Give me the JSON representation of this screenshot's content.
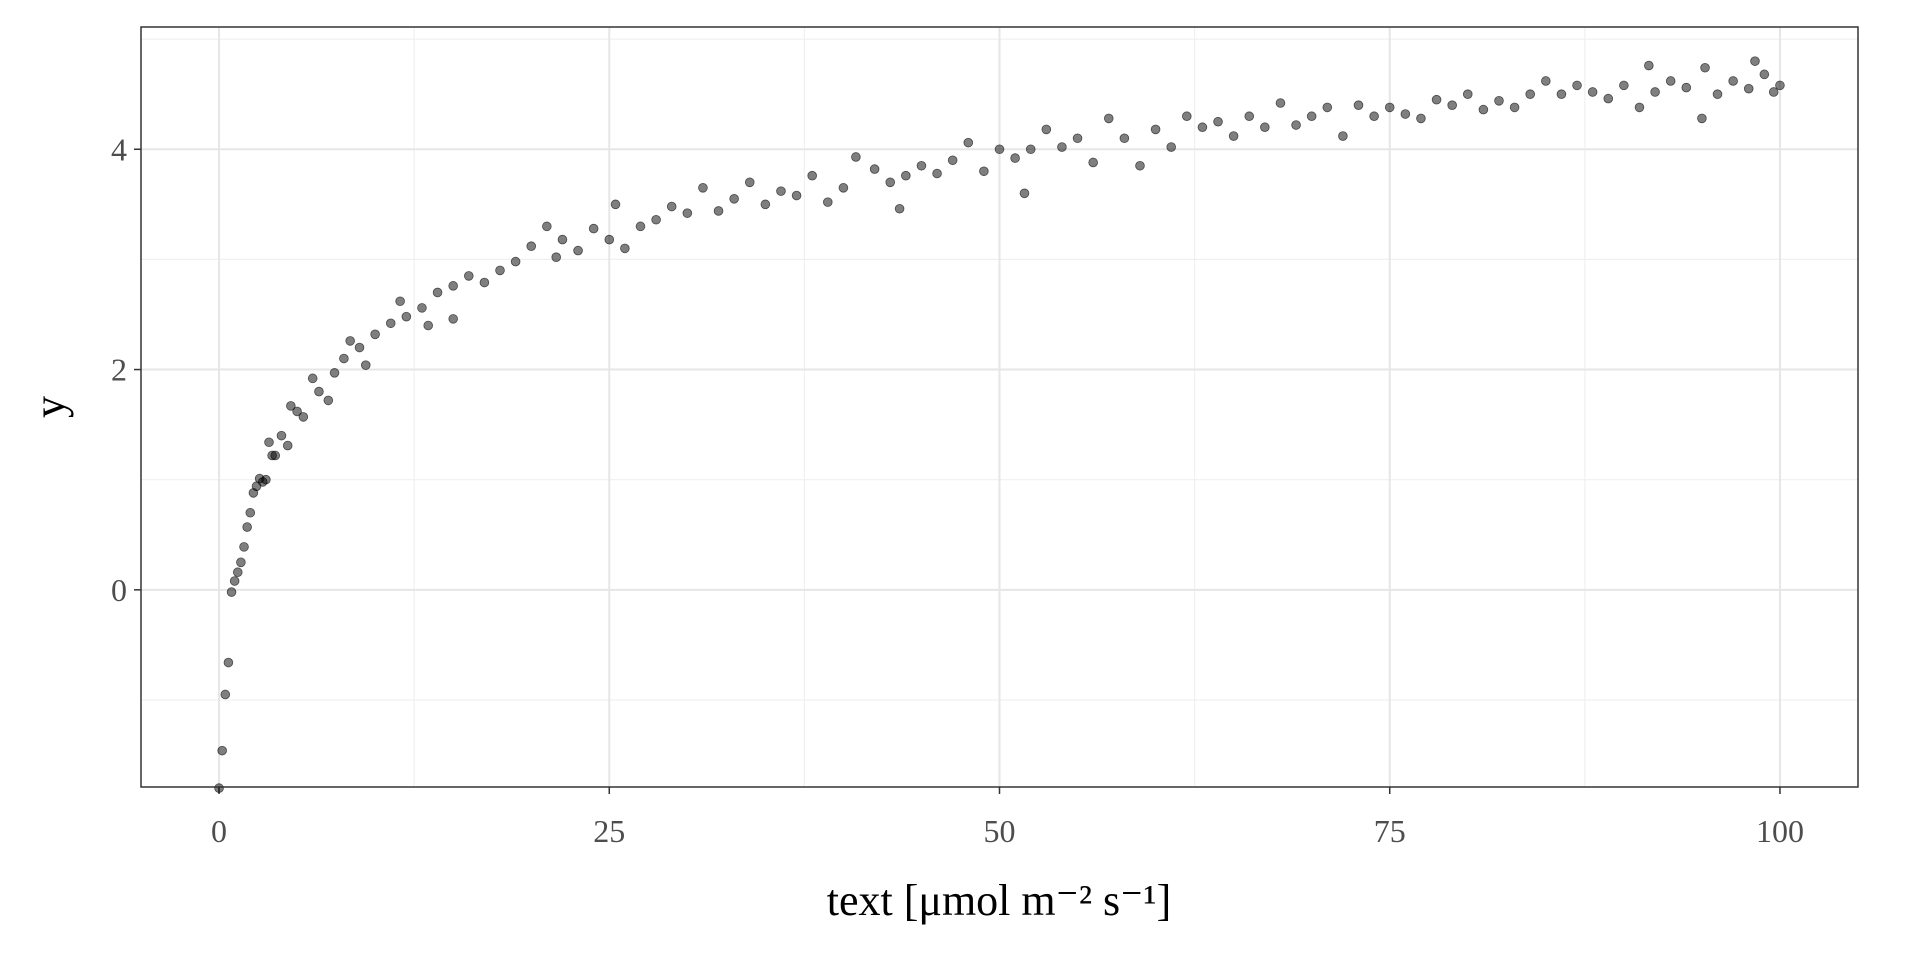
{
  "chart_data": {
    "type": "scatter",
    "xlabel": "text [μmol m⁻² s⁻¹]",
    "ylabel": "y",
    "x": [
      0,
      0.2,
      0.4,
      0.6,
      0.8,
      1.0,
      1.2,
      1.4,
      1.6,
      1.8,
      2.0,
      2.2,
      2.4,
      2.6,
      2.8,
      3.0,
      3.2,
      3.4,
      3.6,
      4.0,
      4.4,
      4.6,
      5,
      5.4,
      6,
      6.4,
      7,
      7.4,
      8,
      8.4,
      9,
      9.4,
      10,
      11,
      11.6,
      12,
      13,
      13.4,
      14,
      15,
      15,
      16,
      17,
      18,
      19,
      20,
      21,
      21.6,
      22,
      23,
      24,
      25,
      25.4,
      26,
      27,
      28,
      29,
      30,
      31,
      32,
      33,
      34,
      35,
      36,
      37,
      38,
      39,
      40,
      40.8,
      42,
      43,
      43.6,
      44,
      45,
      46,
      47,
      48,
      49,
      50,
      51,
      51.6,
      52,
      53,
      54,
      55,
      56,
      57,
      58,
      59,
      60,
      61,
      62,
      63,
      64,
      65,
      66,
      67,
      68,
      69,
      70,
      71,
      72,
      73,
      74,
      75,
      76,
      77,
      78,
      79,
      80,
      81,
      82,
      83,
      84,
      85,
      86,
      87,
      88,
      89,
      90,
      91,
      91.6,
      92,
      93,
      94,
      95,
      95.2,
      96,
      97,
      98,
      98.4,
      99,
      99.6,
      100
    ],
    "values": [
      -1.8,
      -1.46,
      -0.95,
      -0.66,
      -0.02,
      0.08,
      0.16,
      0.25,
      0.39,
      0.57,
      0.7,
      0.88,
      0.94,
      1.01,
      0.98,
      1.0,
      1.34,
      1.22,
      1.22,
      1.4,
      1.31,
      1.67,
      1.62,
      1.57,
      1.92,
      1.8,
      1.72,
      1.97,
      2.1,
      2.26,
      2.2,
      2.04,
      2.32,
      2.42,
      2.62,
      2.48,
      2.56,
      2.4,
      2.7,
      2.46,
      2.76,
      2.85,
      2.79,
      2.9,
      2.98,
      3.12,
      3.3,
      3.02,
      3.18,
      3.08,
      3.28,
      3.18,
      3.5,
      3.1,
      3.3,
      3.36,
      3.48,
      3.42,
      3.65,
      3.44,
      3.55,
      3.7,
      3.5,
      3.62,
      3.58,
      3.76,
      3.52,
      3.65,
      3.93,
      3.82,
      3.7,
      3.46,
      3.76,
      3.85,
      3.78,
      3.9,
      4.06,
      3.8,
      4.0,
      3.92,
      3.6,
      4.0,
      4.18,
      4.02,
      4.1,
      3.88,
      4.28,
      4.1,
      3.85,
      4.18,
      4.02,
      4.3,
      4.2,
      4.25,
      4.12,
      4.3,
      4.2,
      4.42,
      4.22,
      4.3,
      4.38,
      4.12,
      4.4,
      4.3,
      4.38,
      4.32,
      4.28,
      4.45,
      4.4,
      4.5,
      4.36,
      4.44,
      4.38,
      4.5,
      4.62,
      4.5,
      4.58,
      4.52,
      4.46,
      4.58,
      4.38,
      4.76,
      4.52,
      4.62,
      4.56,
      4.28,
      4.74,
      4.5,
      4.62,
      4.55,
      4.8,
      4.68,
      4.52,
      4.58
    ],
    "color": "#000000",
    "xlim": [
      -5,
      105
    ],
    "xticks": [
      0,
      25,
      50,
      75,
      100
    ],
    "x_minor_ticks": [
      12.5,
      37.5,
      62.5,
      87.5
    ],
    "ylim": [
      -1.79,
      5.11
    ],
    "yticks": [
      0,
      2,
      4
    ],
    "y_minor_ticks": [
      -1,
      1,
      3,
      5
    ],
    "grid": true
  }
}
